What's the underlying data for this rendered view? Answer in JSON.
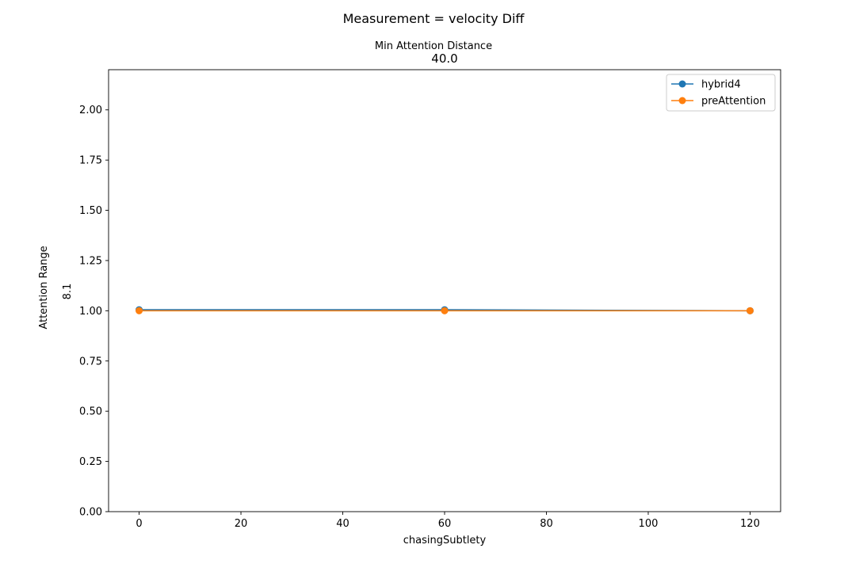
{
  "suptitle": "Measurement = velocity Diff",
  "chart_data": {
    "type": "line",
    "title_top": "Min Attention Distance",
    "title_value": "40.0",
    "xlabel": "chasingSubtlety",
    "ylabel_top": "Attention Range",
    "ylabel_value": "8.1",
    "xlim": [
      -6,
      126
    ],
    "ylim": [
      0,
      2.2
    ],
    "xticks": [
      0,
      20,
      40,
      60,
      80,
      100,
      120
    ],
    "yticks": [
      0.0,
      0.25,
      0.5,
      0.75,
      1.0,
      1.25,
      1.5,
      1.75,
      2.0
    ],
    "ytick_labels": [
      "0.00",
      "0.25",
      "0.50",
      "0.75",
      "1.00",
      "1.25",
      "1.50",
      "1.75",
      "2.00"
    ],
    "x": [
      0,
      60,
      120
    ],
    "series": [
      {
        "name": "hybrid4",
        "values": [
          1.005,
          1.005,
          1.0
        ],
        "color": "#1f77b4"
      },
      {
        "name": "preAttention",
        "values": [
          1.0,
          1.0,
          1.0
        ],
        "color": "#ff7f0e"
      }
    ],
    "legend_position": "top-right",
    "grid": false
  }
}
